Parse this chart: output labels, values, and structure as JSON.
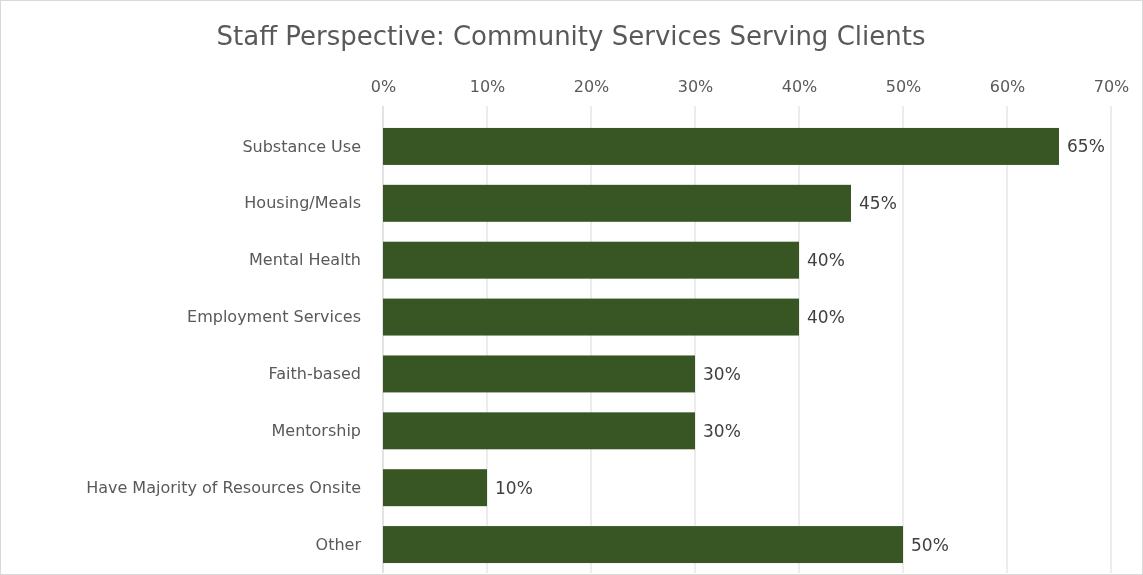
{
  "chart_data": {
    "type": "bar",
    "orientation": "horizontal",
    "title": "Staff Perspective: Community Services Serving Clients",
    "categories": [
      "Substance Use",
      "Housing/Meals",
      "Mental Health",
      "Employment Services",
      "Faith-based",
      "Mentorship",
      "Have Majority of Resources Onsite",
      "Other"
    ],
    "values": [
      65,
      45,
      40,
      40,
      30,
      30,
      10,
      50
    ],
    "value_labels": [
      "65%",
      "45%",
      "40%",
      "40%",
      "30%",
      "30%",
      "10%",
      "50%"
    ],
    "color": "#375623",
    "xlim": [
      0,
      70
    ],
    "xticks": [
      {
        "value": 0,
        "label": "0%"
      },
      {
        "value": 10,
        "label": "10%"
      },
      {
        "value": 20,
        "label": "20%"
      },
      {
        "value": 30,
        "label": "30%"
      },
      {
        "value": 40,
        "label": "40%"
      },
      {
        "value": 50,
        "label": "50%"
      },
      {
        "value": 60,
        "label": "60%"
      },
      {
        "value": 70,
        "label": "70%"
      }
    ],
    "grid": "x"
  }
}
